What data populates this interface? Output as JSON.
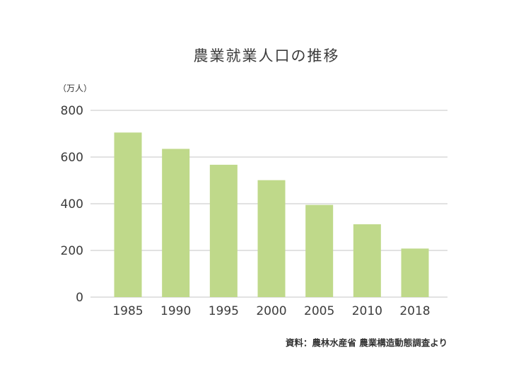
{
  "chart_data": {
    "type": "bar",
    "title": "農業就業人口の推移",
    "unit_label": "（万人）",
    "xlabel": "",
    "ylabel": "",
    "categories": [
      "1985",
      "1990",
      "1995",
      "2000",
      "2005",
      "2010",
      "2018"
    ],
    "values": [
      705,
      635,
      567,
      501,
      395,
      312,
      208
    ],
    "ylim": [
      0,
      800
    ],
    "yticks": [
      "0",
      "200",
      "400",
      "600",
      "800"
    ],
    "grid": true,
    "source": "資料：農林水産省 農業構造動態調査より",
    "bar_color": "#bfd98a",
    "grid_color": "#d9d9d9"
  }
}
